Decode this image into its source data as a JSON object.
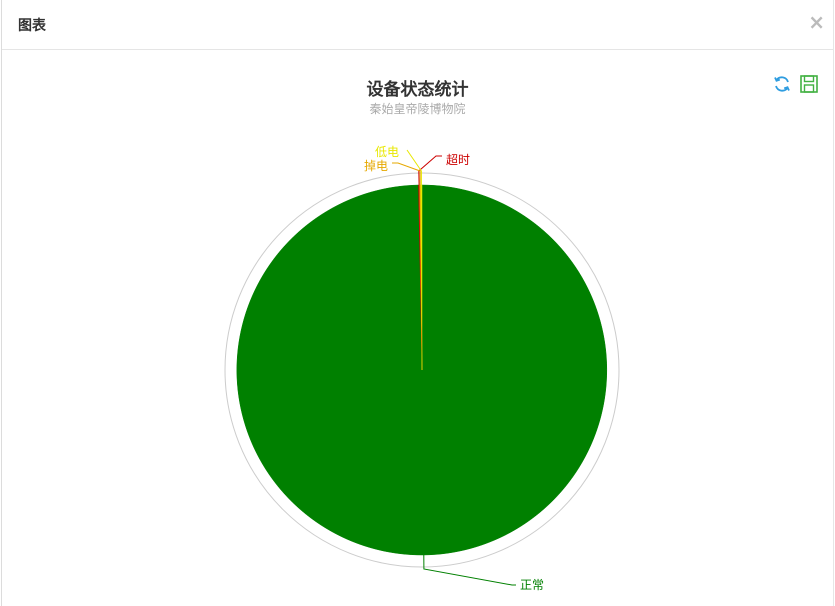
{
  "dialog": {
    "title": "图表",
    "close_label": "×"
  },
  "toolbox": {
    "refresh_icon": "refresh-icon",
    "save_icon": "save-as-image-icon",
    "refresh_color": "#2f9de0",
    "save_color": "#42b142"
  },
  "chart_data": {
    "type": "pie",
    "title": "设备状态统计",
    "subtitle": "秦始皇帝陵博物院",
    "slices": [
      {
        "name": "正常",
        "value": 988,
        "color": "#008000"
      },
      {
        "name": "超时",
        "value": 1,
        "color": "#cc0000"
      },
      {
        "name": "掉电",
        "value": 1,
        "color": "#e6a800"
      },
      {
        "name": "低电",
        "value": 1,
        "color": "#e8e800"
      }
    ]
  }
}
